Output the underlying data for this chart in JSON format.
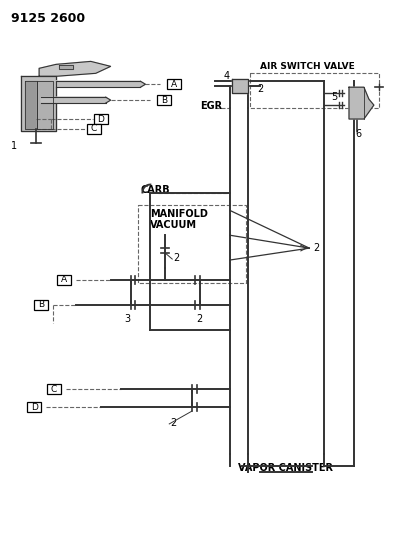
{
  "background_color": "#ffffff",
  "line_color": "#333333",
  "text_color": "#000000",
  "dashed_color": "#666666",
  "part_number": "9125 2600",
  "labels": {
    "air_switch_valve": "AIR SWITCH VALVE",
    "egr": "EGR",
    "carb": "CARB",
    "manifold_vacuum_1": "MANIFOLD",
    "manifold_vacuum_2": "VACUUM",
    "vapor_canister": "VAPOR CANISTER"
  },
  "fig_w": 4.11,
  "fig_h": 5.33,
  "dpi": 100
}
